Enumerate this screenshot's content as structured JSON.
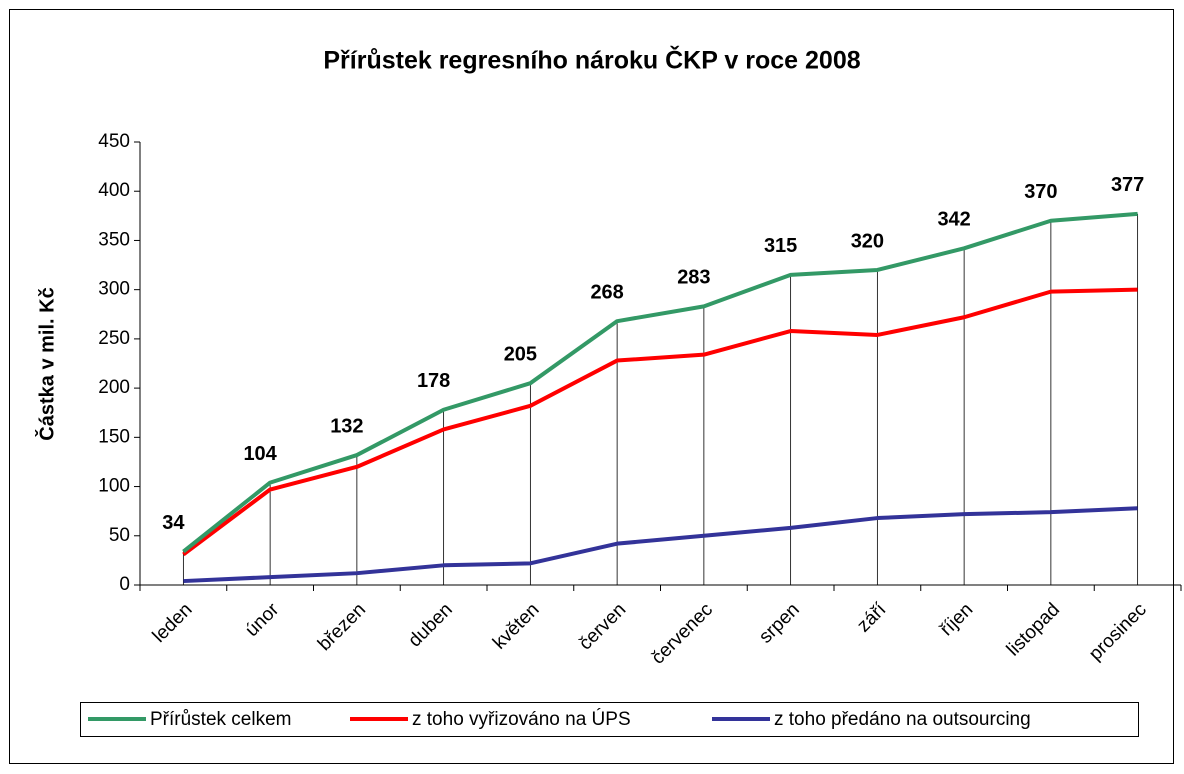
{
  "chart_data": {
    "type": "line",
    "title": "Přírůstek regresního nároku ČKP v roce 2008",
    "y_label": "Částka v mil. Kč",
    "categories": [
      "leden",
      "únor",
      "březen",
      "duben",
      "květen",
      "červen",
      "červenec",
      "srpen",
      "září",
      "říjen",
      "listopad",
      "prosinec"
    ],
    "series": [
      {
        "name": "Přírůstek celkem",
        "color": "#339966",
        "values": [
          34,
          104,
          132,
          178,
          205,
          268,
          283,
          315,
          320,
          342,
          370,
          377
        ]
      },
      {
        "name": "z toho vyřizováno na ÚPS",
        "color": "#ff0000",
        "values": [
          31,
          97,
          120,
          158,
          182,
          228,
          234,
          258,
          254,
          272,
          298,
          300
        ]
      },
      {
        "name": "z toho předáno na outsourcing",
        "color": "#333399",
        "values": [
          4,
          8,
          12,
          20,
          22,
          42,
          50,
          58,
          68,
          72,
          74,
          78
        ]
      }
    ],
    "ylim": [
      0,
      450
    ],
    "yticks": [
      0,
      50,
      100,
      150,
      200,
      250,
      300,
      350,
      400,
      450
    ],
    "legend": "bottom"
  }
}
